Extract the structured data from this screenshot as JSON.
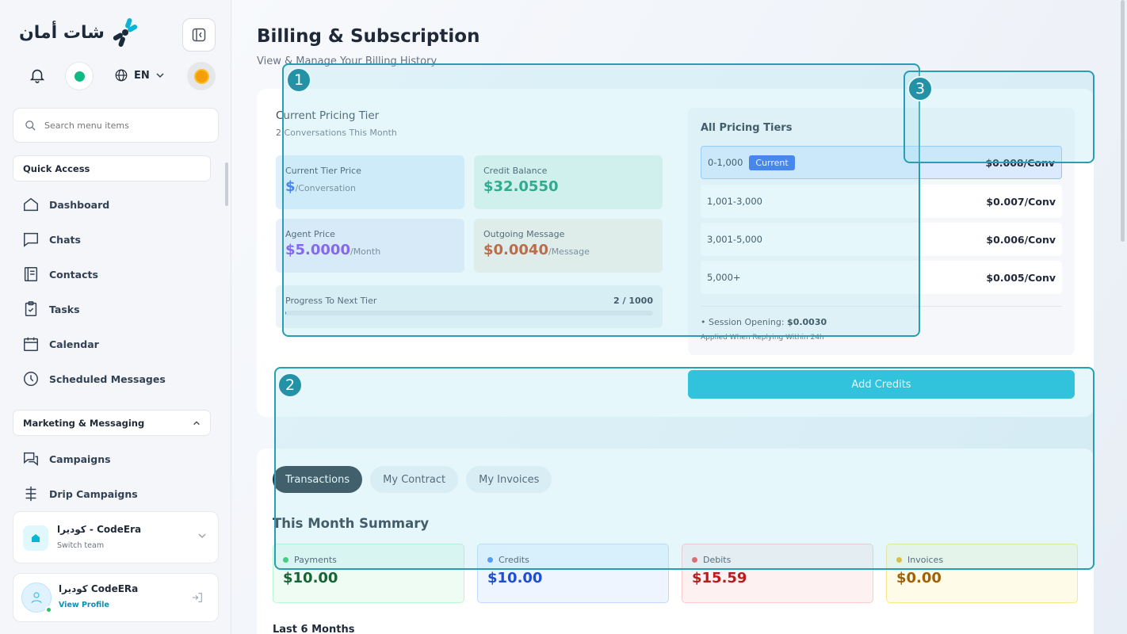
{
  "sidebar": {
    "logo_text": "شات أمان",
    "language": "EN",
    "search_placeholder": "Search menu items",
    "quick_access": "Quick Access",
    "quick_items": [
      {
        "label": "Dashboard",
        "icon": "home-icon"
      },
      {
        "label": "Chats",
        "icon": "chat-icon"
      },
      {
        "label": "Contacts",
        "icon": "contacts-icon"
      },
      {
        "label": "Tasks",
        "icon": "clipboard-icon"
      },
      {
        "label": "Calendar",
        "icon": "calendar-icon"
      },
      {
        "label": "Scheduled Messages",
        "icon": "clock-icon"
      }
    ],
    "marketing": "Marketing & Messaging",
    "marketing_items": [
      {
        "label": "Campaigns",
        "icon": "campaigns-icon"
      },
      {
        "label": "Drip Campaigns",
        "icon": "drip-icon"
      }
    ],
    "team": {
      "name": "كوديرا - CodeEra",
      "sub": "Switch team"
    },
    "profile": {
      "name": "كوديرا CodeERa",
      "link": "View Profile"
    }
  },
  "page": {
    "title": "Billing & Subscription",
    "subtitle": "View & Manage Your Billing History"
  },
  "pricing": {
    "heading": "Current Pricing Tier",
    "sub": "2 Conversations This Month",
    "current_tier_label": "Current Tier Price",
    "current_tier_value": "$",
    "current_tier_unit": "/Conversation",
    "credit_label": "Credit Balance",
    "credit_value": "$32.0550",
    "agent_label": "Agent Price",
    "agent_value": "$5.0000",
    "agent_unit": "/Month",
    "outgoing_label": "Outgoing Message",
    "outgoing_value": "$0.0040",
    "outgoing_unit": "/Message",
    "progress_label": "Progress To Next Tier",
    "progress_value": "2 / 1000",
    "progress_fraction": 0.002
  },
  "tiers": {
    "title": "All Pricing Tiers",
    "current_badge": "Current",
    "rows": [
      {
        "range": "0-1,000",
        "price": "$0.008/Conv",
        "current": true
      },
      {
        "range": "1,001-3,000",
        "price": "$0.007/Conv",
        "current": false
      },
      {
        "range": "3,001-5,000",
        "price": "$0.006/Conv",
        "current": false
      },
      {
        "range": "5,000+",
        "price": "$0.005/Conv",
        "current": false
      }
    ],
    "session_label": "• Session Opening: ",
    "session_value": "$0.0030",
    "session_note": "Applied When Replying Within 24h"
  },
  "add_credits": "Add Credits",
  "tabs": [
    "Transactions",
    "My Contract",
    "My Invoices"
  ],
  "summary": {
    "title": "This Month Summary",
    "cards": [
      {
        "label": "Payments",
        "value": "$10.00",
        "dot": "#22c55e",
        "color": "#166534",
        "bg": "#effcf3",
        "border": "#bbf7d0"
      },
      {
        "label": "Credits",
        "value": "$10.00",
        "dot": "#3b82f6",
        "color": "#1d4ed8",
        "bg": "#eef5ff",
        "border": "#bfdbfe"
      },
      {
        "label": "Debits",
        "value": "$15.59",
        "dot": "#ef4444",
        "color": "#b91c1c",
        "bg": "#fef1f1",
        "border": "#fecaca"
      },
      {
        "label": "Invoices",
        "value": "$0.00",
        "dot": "#eab308",
        "color": "#a16207",
        "bg": "#fefbe8",
        "border": "#fde68a"
      }
    ],
    "last6": "Last 6 Months"
  },
  "annotations": [
    "1",
    "2",
    "3"
  ],
  "colors": {
    "accent": "#06b6d4",
    "brand_dark": "#1e2d3a",
    "annotation": "#2a9db0"
  }
}
